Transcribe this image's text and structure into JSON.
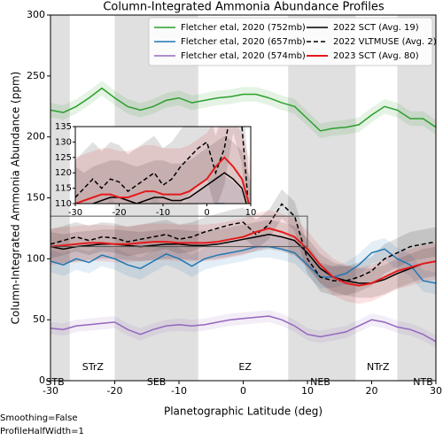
{
  "chart_data": {
    "type": "line",
    "title": "Column-Integrated Ammonia Abundance Profiles",
    "xlabel": "Planetographic Latitude (deg)",
    "ylabel": "Column-Integrated Ammonia Abundance (ppm)",
    "xlim": [
      -30,
      30
    ],
    "ylim": [
      0,
      300
    ],
    "xticks": [
      -30,
      -20,
      -10,
      0,
      10,
      20,
      30
    ],
    "yticks": [
      0,
      50,
      100,
      150,
      200,
      250,
      300
    ],
    "legend": "upper right",
    "x": [
      -30,
      -28,
      -26,
      -24,
      -22,
      -20,
      -18,
      -16,
      -14,
      -12,
      -10,
      -8,
      -6,
      -4,
      -2,
      0,
      2,
      4,
      6,
      8,
      10,
      12,
      14,
      16,
      18,
      20,
      22,
      24,
      26,
      28,
      30
    ],
    "series": [
      {
        "name": "Fletcher etal, 2020 (752mb)",
        "color": "#2ca02c",
        "linestyle": "solid",
        "spread": 6,
        "values": [
          222,
          220,
          225,
          232,
          240,
          232,
          225,
          222,
          225,
          230,
          232,
          228,
          230,
          232,
          233,
          235,
          235,
          232,
          228,
          225,
          215,
          205,
          207,
          208,
          210,
          218,
          225,
          222,
          215,
          215,
          208
        ]
      },
      {
        "name": "Fletcher etal, 2020 (657mb)",
        "color": "#1f77b4",
        "linestyle": "solid",
        "spread": 9,
        "values": [
          98,
          95,
          100,
          97,
          103,
          100,
          95,
          92,
          98,
          104,
          100,
          94,
          100,
          103,
          105,
          107,
          110,
          110,
          108,
          105,
          95,
          85,
          85,
          88,
          95,
          105,
          108,
          100,
          95,
          82,
          80
        ]
      },
      {
        "name": "Fletcher etal, 2020 (574mb)",
        "color": "#9467bd",
        "linestyle": "solid",
        "spread": 5,
        "values": [
          43,
          42,
          45,
          46,
          47,
          48,
          42,
          38,
          42,
          45,
          46,
          45,
          46,
          48,
          50,
          51,
          52,
          53,
          50,
          45,
          38,
          36,
          38,
          40,
          45,
          50,
          48,
          44,
          42,
          38,
          32
        ]
      },
      {
        "name": "2022 SCT (Avg. 19)",
        "color": "#000000",
        "linestyle": "solid",
        "spread": 12,
        "values": [
          110,
          108,
          110,
          111,
          112,
          112,
          111,
          110,
          111,
          112,
          112,
          111,
          111,
          112,
          114,
          116,
          118,
          120,
          118,
          115,
          105,
          92,
          85,
          82,
          80,
          80,
          83,
          88,
          92,
          96,
          98
        ]
      },
      {
        "name": "2022 VLTMUSE (Avg. 2)",
        "color": "#000000",
        "linestyle": "dashed",
        "spread": 12,
        "values": [
          112,
          115,
          118,
          115,
          118,
          117,
          114,
          116,
          118,
          120,
          116,
          118,
          122,
          125,
          128,
          130,
          120,
          128,
          145,
          135,
          100,
          85,
          82,
          82,
          85,
          90,
          100,
          105,
          110,
          112,
          114
        ]
      },
      {
        "name": "2023 SCT (Avg. 80)",
        "color": "#e41a1c",
        "linestyle": "solid",
        "spread": 15,
        "values": [
          110,
          111,
          112,
          113,
          113,
          112,
          112,
          113,
          114,
          114,
          113,
          113,
          113,
          114,
          116,
          118,
          122,
          125,
          122,
          118,
          108,
          95,
          85,
          80,
          78,
          80,
          85,
          90,
          93,
          96,
          98
        ]
      }
    ],
    "shaded_regions": [
      [
        -30,
        -27
      ],
      [
        -20,
        -7
      ],
      [
        7,
        17.5
      ],
      [
        24,
        30
      ]
    ],
    "regions": [
      {
        "label": "STB",
        "x": -29.3
      },
      {
        "label": "STrZ",
        "x": -23.4
      },
      {
        "label": "SEB",
        "x": -13.5
      },
      {
        "label": "EZ",
        "x": 0.3
      },
      {
        "label": "NEB",
        "x": 12
      },
      {
        "label": "NTrZ",
        "x": 21
      },
      {
        "label": "NTB",
        "x": 28
      }
    ],
    "inset": {
      "xlim": [
        -30,
        10
      ],
      "ylim": [
        110,
        135
      ],
      "xticks": [
        -30,
        -20,
        -10,
        0,
        10
      ],
      "yticks": [
        110,
        115,
        120,
        125,
        130,
        135
      ]
    },
    "notes": [
      "Smoothing=False",
      "ProfileHalfWidth=1"
    ]
  }
}
